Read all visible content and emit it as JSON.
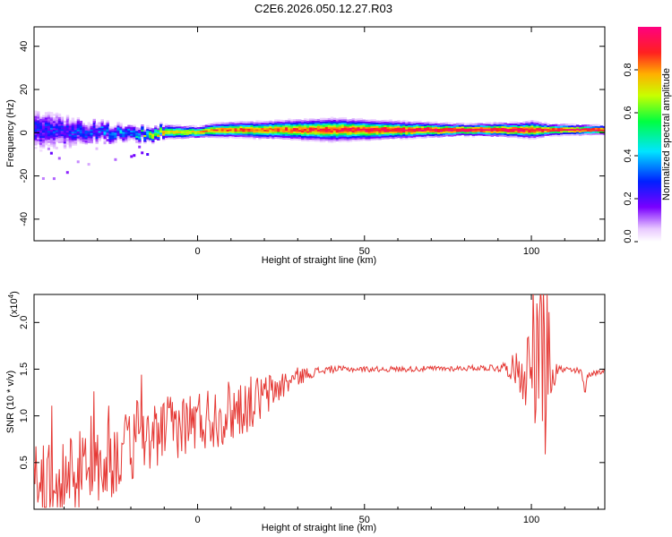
{
  "figure": {
    "title": "C2E6.2026.050.12.27.R03"
  },
  "colors": {
    "snr_line": "#e53935",
    "spectral_core": "#ff2020",
    "spectral_edge": "#7a00ff",
    "axis": "#000000"
  },
  "chart_data": [
    {
      "type": "heatmap",
      "xlabel": "Height of straight line (km)",
      "ylabel": "Frequency (Hz)",
      "xlim": [
        -49,
        122
      ],
      "ylim": [
        -50,
        49
      ],
      "xticks": [
        0,
        50,
        100
      ],
      "yticks": [
        40,
        20,
        0,
        -20,
        -40
      ],
      "grid": false,
      "colorbar": {
        "label": "Normalized spectral amplitude",
        "range": [
          0.0,
          1.0
        ],
        "ticks": [
          "0.0",
          "0.2",
          "0.4",
          "0.6",
          "0.8"
        ],
        "colormap": "rainbow (violet → blue → cyan → green → yellow → orange → red → magenta)"
      },
      "band": {
        "center_hz": [
          [
            -49,
            1
          ],
          [
            -40,
            0
          ],
          [
            -30,
            0
          ],
          [
            -20,
            -1
          ],
          [
            -10,
            0
          ],
          [
            0,
            0
          ],
          [
            5,
            1
          ],
          [
            20,
            1
          ],
          [
            40,
            1
          ],
          [
            60,
            1
          ],
          [
            80,
            1
          ],
          [
            100,
            1
          ],
          [
            122,
            1
          ]
        ],
        "half_width_hz": [
          [
            -49,
            8
          ],
          [
            -40,
            6
          ],
          [
            -30,
            4
          ],
          [
            -20,
            3
          ],
          [
            -10,
            2.5
          ],
          [
            0,
            2
          ],
          [
            5,
            2.5
          ],
          [
            20,
            3
          ],
          [
            40,
            4
          ],
          [
            60,
            3
          ],
          [
            80,
            2
          ],
          [
            95,
            2.5
          ],
          [
            100,
            3
          ],
          [
            105,
            2
          ],
          [
            122,
            1.5
          ]
        ],
        "peak_amplitude": [
          [
            -49,
            0.25
          ],
          [
            -40,
            0.25
          ],
          [
            -30,
            0.3
          ],
          [
            -20,
            0.35
          ],
          [
            -12,
            0.7
          ],
          [
            0,
            0.75
          ],
          [
            5,
            0.85
          ],
          [
            20,
            0.85
          ],
          [
            40,
            0.9
          ],
          [
            60,
            0.95
          ],
          [
            80,
            1.0
          ],
          [
            95,
            1.0
          ],
          [
            100,
            0.95
          ],
          [
            122,
            1.0
          ]
        ]
      }
    },
    {
      "type": "line",
      "xlabel": "Height of straight line (km)",
      "ylabel": "SNR (10 * v/v)",
      "y_multiplier": "(x10^4)",
      "xlim": [
        -49,
        122
      ],
      "ylim": [
        0.0,
        2.3
      ],
      "xticks": [
        0,
        50,
        100
      ],
      "yticks": [
        0.5,
        1.0,
        1.5,
        2.0
      ],
      "grid": false,
      "series": [
        {
          "trend": [
            [
              -49,
              0.3
            ],
            [
              -40,
              0.35
            ],
            [
              -30,
              0.45
            ],
            [
              -20,
              0.65
            ],
            [
              -10,
              0.85
            ],
            [
              0,
              0.95
            ],
            [
              10,
              1.05
            ],
            [
              20,
              1.2
            ],
            [
              25,
              1.32
            ],
            [
              30,
              1.42
            ],
            [
              35,
              1.47
            ],
            [
              40,
              1.5
            ],
            [
              60,
              1.5
            ],
            [
              80,
              1.51
            ],
            [
              92,
              1.52
            ],
            [
              96,
              1.5
            ],
            [
              100,
              1.5
            ],
            [
              105,
              1.55
            ],
            [
              108,
              1.5
            ],
            [
              115,
              1.47
            ],
            [
              116,
              1.25
            ],
            [
              117,
              1.45
            ],
            [
              122,
              1.48
            ]
          ],
          "noise_amplitude": [
            [
              -49,
              0.35
            ],
            [
              -40,
              0.45
            ],
            [
              -30,
              0.45
            ],
            [
              -20,
              0.4
            ],
            [
              -10,
              0.35
            ],
            [
              0,
              0.35
            ],
            [
              10,
              0.35
            ],
            [
              20,
              0.25
            ],
            [
              28,
              0.12
            ],
            [
              35,
              0.05
            ],
            [
              45,
              0.03
            ],
            [
              85,
              0.03
            ],
            [
              92,
              0.06
            ],
            [
              96,
              0.2
            ],
            [
              100,
              0.6
            ],
            [
              103,
              0.9
            ],
            [
              105,
              0.5
            ],
            [
              108,
              0.05
            ],
            [
              122,
              0.03
            ]
          ]
        }
      ]
    }
  ]
}
